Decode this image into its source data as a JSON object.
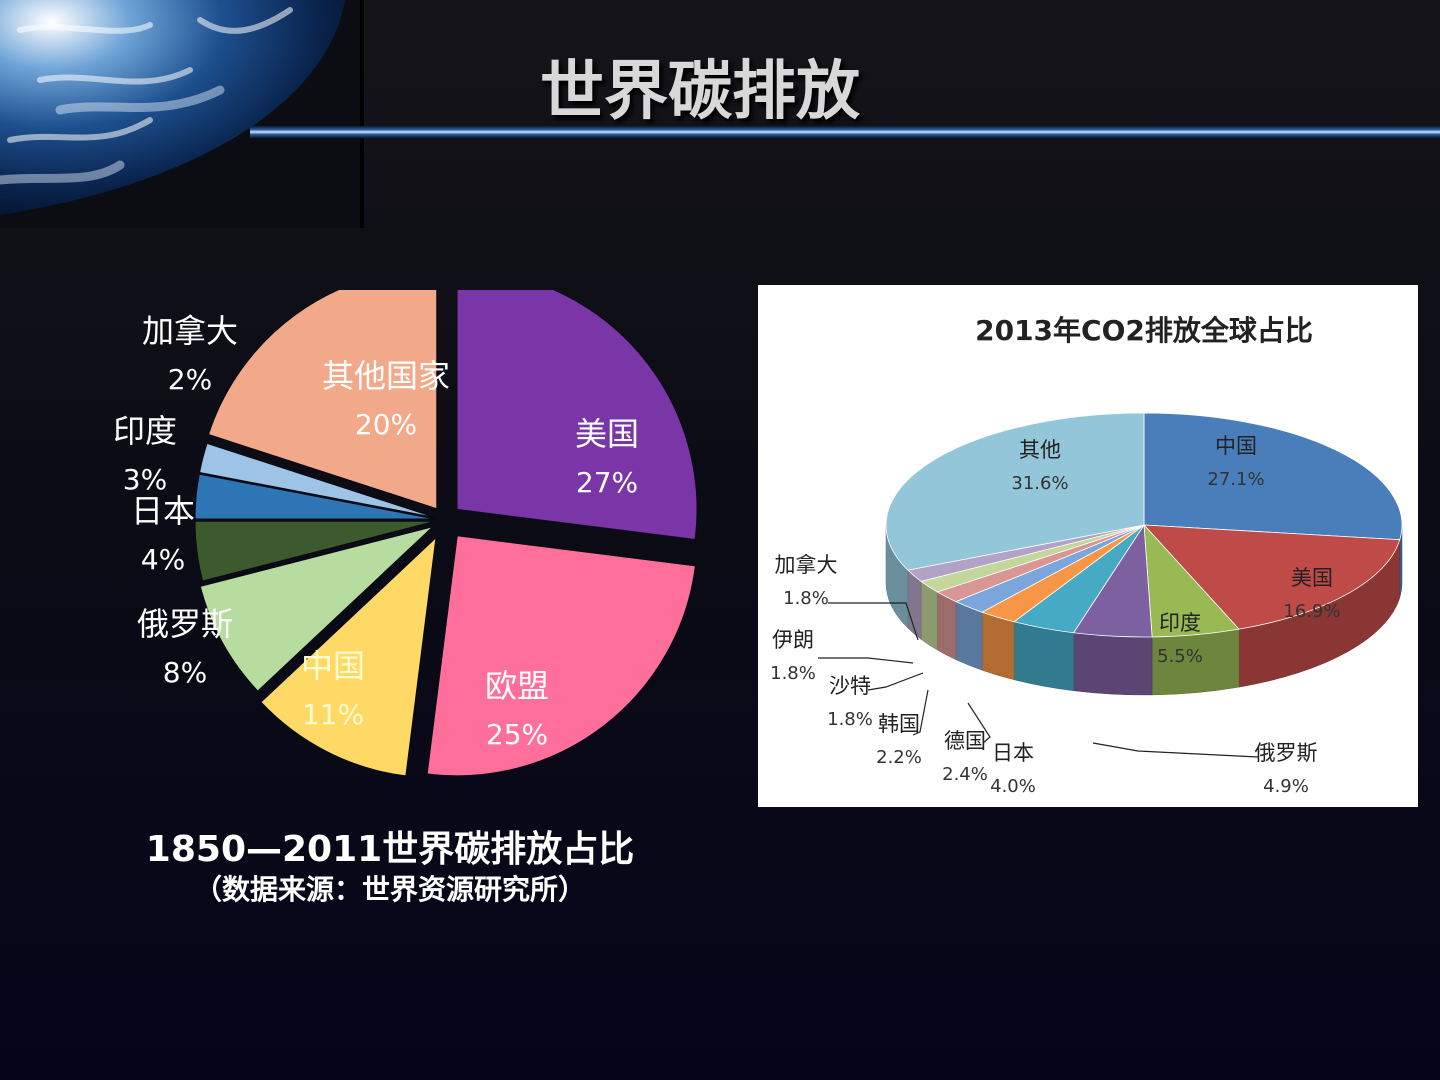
{
  "slide": {
    "title": "世界碳排放",
    "caption_line1": "1850—2011世界碳排放占比",
    "caption_line2": "（数据来源：世界资源研究所）"
  },
  "chart_data": [
    {
      "type": "pie",
      "title": "",
      "categories": [
        "美国",
        "欧盟",
        "中国",
        "俄罗斯",
        "日本",
        "印度",
        "加拿大",
        "其他国家"
      ],
      "values": [
        27,
        25,
        11,
        8,
        4,
        3,
        2,
        20
      ],
      "labels": [
        "27%",
        "25%",
        "11%",
        "8%",
        "4%",
        "3%",
        "2%",
        "20%"
      ],
      "colors": [
        "#7a36a6",
        "#ff6f9c",
        "#ffd966",
        "#b7dca0",
        "#3d5a2e",
        "#2e75b6",
        "#9dc3e6",
        "#f2a98a"
      ],
      "legend": "none"
    },
    {
      "type": "pie",
      "title": "2013年CO2排放全球占比",
      "categories": [
        "中国",
        "美国",
        "印度",
        "俄罗斯",
        "日本",
        "德国",
        "韩国",
        "沙特",
        "伊朗",
        "加拿大",
        "其他"
      ],
      "values": [
        27.1,
        16.9,
        5.5,
        4.9,
        4.0,
        2.4,
        2.2,
        1.8,
        1.8,
        1.8,
        31.6
      ],
      "labels": [
        "27.1%",
        "16.9%",
        "5.5%",
        "4.9%",
        "4.0%",
        "2.4%",
        "2.2%",
        "1.8%",
        "1.8%",
        "1.8%",
        "31.6%"
      ],
      "colors": [
        "#4a7ebb",
        "#be4b48",
        "#98b954",
        "#7d60a0",
        "#46aac5",
        "#f79646",
        "#7aa6db",
        "#d99694",
        "#c3d69b",
        "#b3a2c7",
        "#93c6d8"
      ],
      "style": "3d",
      "legend": "none"
    }
  ]
}
